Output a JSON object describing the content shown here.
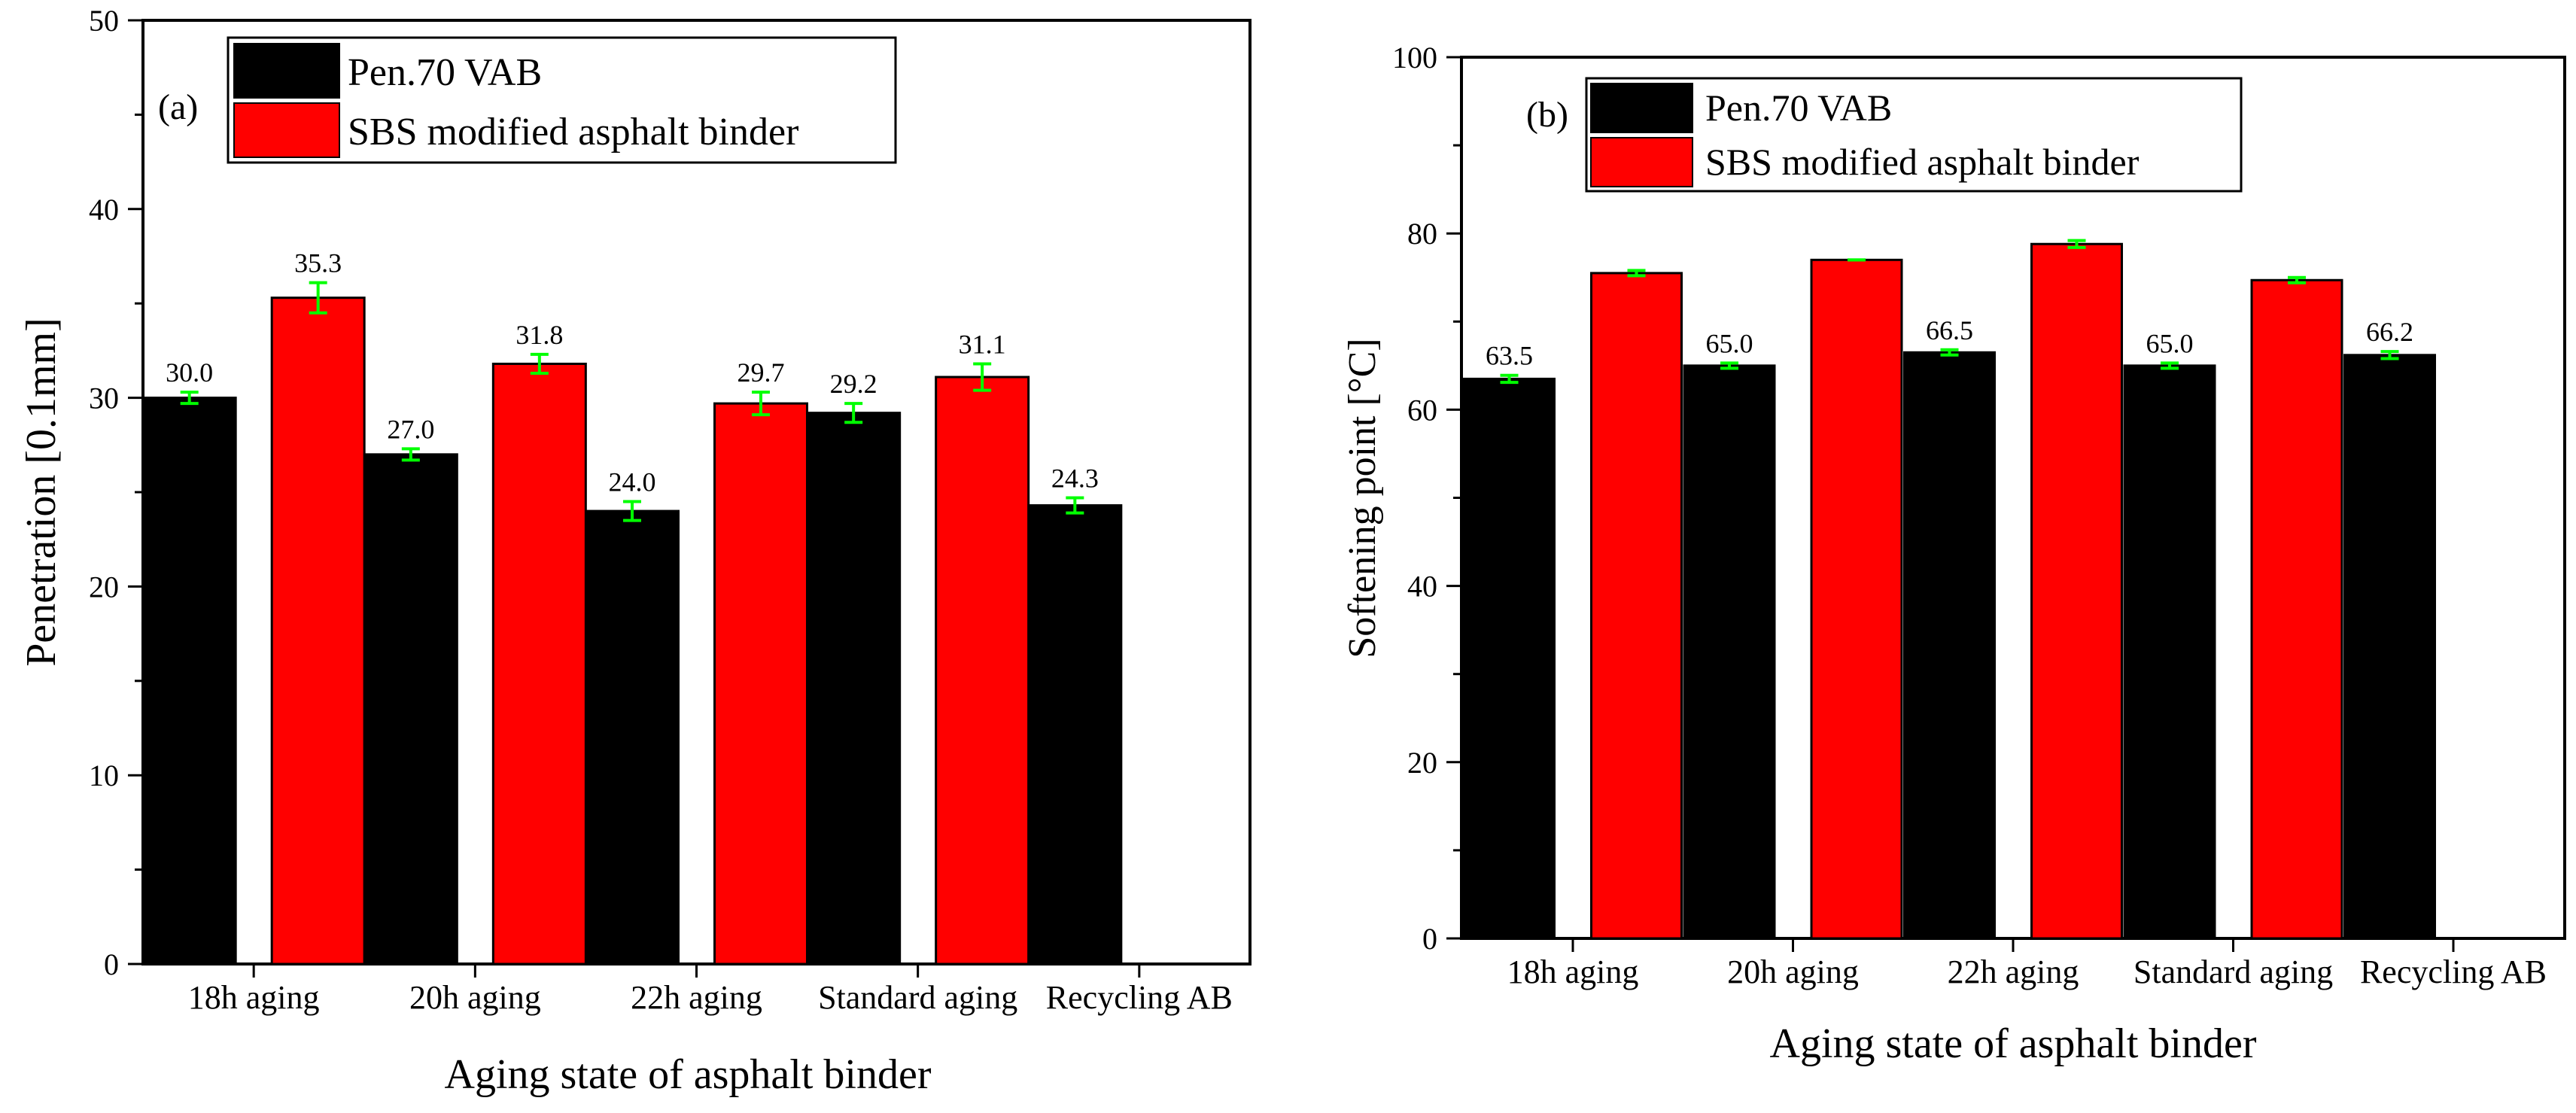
{
  "colors": {
    "series_1": "#000000",
    "series_2": "#ff0000",
    "error_bar": "#00ff00",
    "axis": "#000000",
    "background": "#ffffff"
  },
  "chart_data": [
    {
      "type": "bar",
      "panel_label": "(a)",
      "title": "",
      "xlabel": "Aging state of asphalt binder",
      "ylabel": "Penetration [0.1mm]",
      "categories": [
        "18h aging",
        "20h aging",
        "22h aging",
        "Standard aging",
        "Recycling AB"
      ],
      "ylim": [
        0,
        50
      ],
      "y_ticks": [
        0,
        10,
        20,
        30,
        40,
        50
      ],
      "grid": false,
      "legend_position": "top-left",
      "series": [
        {
          "name": "Pen.70 VAB",
          "values": [
            30.0,
            27.0,
            24.0,
            29.2,
            24.3
          ],
          "errors": [
            0.3,
            0.3,
            0.5,
            0.5,
            0.4
          ],
          "value_labels": [
            "30.0",
            "27.0",
            "24.0",
            "29.2",
            "24.3"
          ]
        },
        {
          "name": "SBS modified asphalt binder",
          "values": [
            35.3,
            31.8,
            29.7,
            31.1,
            null
          ],
          "errors": [
            0.8,
            0.5,
            0.6,
            0.7,
            null
          ],
          "value_labels": [
            "35.3",
            "31.8",
            "29.7",
            "31.1",
            null
          ]
        }
      ]
    },
    {
      "type": "bar",
      "panel_label": "(b)",
      "title": "",
      "xlabel": "Aging state of asphalt binder",
      "ylabel": "Softening point [°C]",
      "categories": [
        "18h aging",
        "20h aging",
        "22h aging",
        "Standard aging",
        "Recycling AB"
      ],
      "ylim": [
        0,
        100
      ],
      "y_ticks": [
        0,
        20,
        40,
        60,
        80,
        100
      ],
      "grid": false,
      "legend_position": "top-left",
      "series": [
        {
          "name": "Pen.70 VAB",
          "values": [
            63.5,
            65.0,
            66.5,
            65.0,
            66.2
          ],
          "errors": [
            0.4,
            0.3,
            0.3,
            0.3,
            0.4
          ],
          "value_labels": [
            "63.5",
            "65.0",
            "66.5",
            "65.0",
            "66.2"
          ]
        },
        {
          "name": "SBS modified asphalt binder",
          "values": [
            75.5,
            77.0,
            78.8,
            74.7,
            null
          ],
          "errors": [
            0.3,
            0.0,
            0.4,
            0.3,
            null
          ],
          "value_labels": [
            null,
            null,
            null,
            null,
            null
          ]
        }
      ]
    }
  ]
}
